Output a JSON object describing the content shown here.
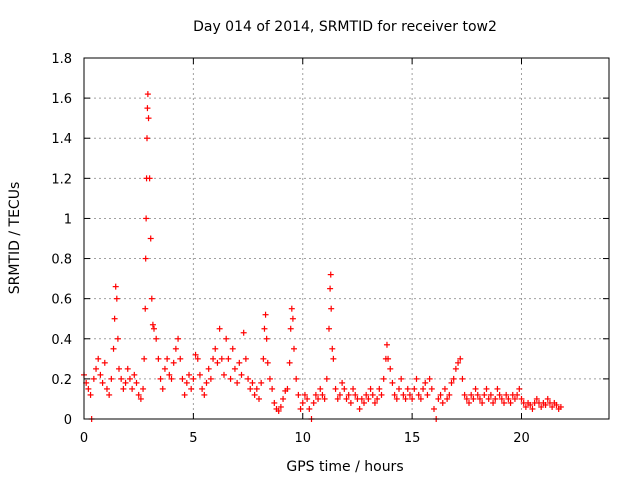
{
  "chart_data": {
    "type": "scatter",
    "title": "Day 014 of 2014, SRMTID for receiver tow2",
    "xlabel": "GPS time / hours",
    "ylabel": "SRMTID / TECUs",
    "xlim": [
      0,
      24
    ],
    "ylim": [
      0,
      1.8
    ],
    "xticks": [
      0,
      5,
      10,
      15,
      20
    ],
    "xtick_labels": [
      "0",
      "5",
      "10",
      "15",
      "20"
    ],
    "yticks": [
      0,
      0.2,
      0.4,
      0.6,
      0.8,
      1,
      1.2,
      1.4,
      1.6,
      1.8
    ],
    "ytick_labels": [
      "0",
      "0.2",
      "0.4",
      "0.6",
      "0.8",
      "1",
      "1.2",
      "1.4",
      "1.6",
      "1.8"
    ],
    "grid": true,
    "marker": "+",
    "color": "#ff0000",
    "series": [
      {
        "name": "SRMTID",
        "points": [
          [
            0.0,
            0.22
          ],
          [
            0.1,
            0.18
          ],
          [
            0.2,
            0.15
          ],
          [
            0.3,
            0.12
          ],
          [
            0.35,
            0.0
          ],
          [
            0.45,
            0.2
          ],
          [
            0.55,
            0.25
          ],
          [
            0.65,
            0.3
          ],
          [
            0.75,
            0.22
          ],
          [
            0.85,
            0.18
          ],
          [
            0.95,
            0.28
          ],
          [
            1.05,
            0.15
          ],
          [
            1.15,
            0.12
          ],
          [
            1.25,
            0.2
          ],
          [
            1.35,
            0.35
          ],
          [
            1.4,
            0.5
          ],
          [
            1.45,
            0.66
          ],
          [
            1.5,
            0.6
          ],
          [
            1.55,
            0.4
          ],
          [
            1.6,
            0.25
          ],
          [
            1.7,
            0.2
          ],
          [
            1.8,
            0.15
          ],
          [
            1.9,
            0.18
          ],
          [
            2.0,
            0.25
          ],
          [
            2.1,
            0.2
          ],
          [
            2.2,
            0.15
          ],
          [
            2.3,
            0.22
          ],
          [
            2.4,
            0.18
          ],
          [
            2.5,
            0.12
          ],
          [
            2.6,
            0.1
          ],
          [
            2.7,
            0.15
          ],
          [
            2.75,
            0.3
          ],
          [
            2.8,
            0.55
          ],
          [
            2.82,
            0.8
          ],
          [
            2.84,
            1.0
          ],
          [
            2.86,
            1.2
          ],
          [
            2.88,
            1.4
          ],
          [
            2.9,
            1.55
          ],
          [
            2.92,
            1.62
          ],
          [
            2.95,
            1.5
          ],
          [
            3.0,
            1.2
          ],
          [
            3.05,
            0.9
          ],
          [
            3.1,
            0.6
          ],
          [
            3.15,
            0.47
          ],
          [
            3.2,
            0.45
          ],
          [
            3.3,
            0.4
          ],
          [
            3.4,
            0.3
          ],
          [
            3.5,
            0.2
          ],
          [
            3.6,
            0.15
          ],
          [
            3.7,
            0.25
          ],
          [
            3.8,
            0.3
          ],
          [
            3.9,
            0.22
          ],
          [
            4.0,
            0.2
          ],
          [
            4.1,
            0.28
          ],
          [
            4.2,
            0.35
          ],
          [
            4.3,
            0.4
          ],
          [
            4.4,
            0.3
          ],
          [
            4.5,
            0.2
          ],
          [
            4.6,
            0.12
          ],
          [
            4.7,
            0.18
          ],
          [
            4.8,
            0.22
          ],
          [
            4.9,
            0.15
          ],
          [
            5.0,
            0.2
          ],
          [
            5.1,
            0.32
          ],
          [
            5.2,
            0.3
          ],
          [
            5.3,
            0.22
          ],
          [
            5.4,
            0.15
          ],
          [
            5.5,
            0.12
          ],
          [
            5.6,
            0.18
          ],
          [
            5.7,
            0.25
          ],
          [
            5.8,
            0.2
          ],
          [
            5.9,
            0.3
          ],
          [
            6.0,
            0.35
          ],
          [
            6.1,
            0.28
          ],
          [
            6.2,
            0.45
          ],
          [
            6.3,
            0.3
          ],
          [
            6.4,
            0.22
          ],
          [
            6.5,
            0.4
          ],
          [
            6.6,
            0.3
          ],
          [
            6.7,
            0.2
          ],
          [
            6.8,
            0.35
          ],
          [
            6.9,
            0.25
          ],
          [
            7.0,
            0.18
          ],
          [
            7.1,
            0.28
          ],
          [
            7.2,
            0.22
          ],
          [
            7.3,
            0.43
          ],
          [
            7.4,
            0.3
          ],
          [
            7.5,
            0.2
          ],
          [
            7.6,
            0.15
          ],
          [
            7.7,
            0.18
          ],
          [
            7.8,
            0.12
          ],
          [
            7.9,
            0.15
          ],
          [
            8.0,
            0.1
          ],
          [
            8.1,
            0.18
          ],
          [
            8.2,
            0.3
          ],
          [
            8.25,
            0.45
          ],
          [
            8.3,
            0.52
          ],
          [
            8.35,
            0.4
          ],
          [
            8.4,
            0.28
          ],
          [
            8.5,
            0.2
          ],
          [
            8.6,
            0.15
          ],
          [
            8.7,
            0.08
          ],
          [
            8.8,
            0.05
          ],
          [
            8.9,
            0.04
          ],
          [
            9.0,
            0.06
          ],
          [
            9.1,
            0.1
          ],
          [
            9.2,
            0.14
          ],
          [
            9.3,
            0.15
          ],
          [
            9.4,
            0.28
          ],
          [
            9.45,
            0.45
          ],
          [
            9.5,
            0.55
          ],
          [
            9.55,
            0.5
          ],
          [
            9.6,
            0.35
          ],
          [
            9.7,
            0.2
          ],
          [
            9.8,
            0.12
          ],
          [
            9.9,
            0.05
          ],
          [
            10.0,
            0.08
          ],
          [
            10.1,
            0.12
          ],
          [
            10.2,
            0.1
          ],
          [
            10.3,
            0.05
          ],
          [
            10.4,
            0.0
          ],
          [
            10.5,
            0.08
          ],
          [
            10.6,
            0.12
          ],
          [
            10.7,
            0.1
          ],
          [
            10.8,
            0.15
          ],
          [
            10.9,
            0.12
          ],
          [
            11.0,
            0.1
          ],
          [
            11.1,
            0.2
          ],
          [
            11.2,
            0.45
          ],
          [
            11.25,
            0.65
          ],
          [
            11.28,
            0.72
          ],
          [
            11.3,
            0.55
          ],
          [
            11.35,
            0.35
          ],
          [
            11.4,
            0.3
          ],
          [
            11.5,
            0.15
          ],
          [
            11.6,
            0.1
          ],
          [
            11.7,
            0.12
          ],
          [
            11.8,
            0.18
          ],
          [
            11.9,
            0.15
          ],
          [
            12.0,
            0.1
          ],
          [
            12.1,
            0.12
          ],
          [
            12.2,
            0.08
          ],
          [
            12.3,
            0.15
          ],
          [
            12.4,
            0.12
          ],
          [
            12.5,
            0.1
          ],
          [
            12.6,
            0.05
          ],
          [
            12.7,
            0.1
          ],
          [
            12.8,
            0.08
          ],
          [
            12.9,
            0.12
          ],
          [
            13.0,
            0.1
          ],
          [
            13.1,
            0.15
          ],
          [
            13.2,
            0.12
          ],
          [
            13.3,
            0.08
          ],
          [
            13.4,
            0.1
          ],
          [
            13.5,
            0.15
          ],
          [
            13.6,
            0.12
          ],
          [
            13.7,
            0.2
          ],
          [
            13.8,
            0.3
          ],
          [
            13.85,
            0.37
          ],
          [
            13.9,
            0.3
          ],
          [
            14.0,
            0.25
          ],
          [
            14.1,
            0.18
          ],
          [
            14.2,
            0.12
          ],
          [
            14.3,
            0.1
          ],
          [
            14.4,
            0.15
          ],
          [
            14.5,
            0.2
          ],
          [
            14.6,
            0.12
          ],
          [
            14.7,
            0.1
          ],
          [
            14.8,
            0.15
          ],
          [
            14.9,
            0.12
          ],
          [
            15.0,
            0.1
          ],
          [
            15.1,
            0.15
          ],
          [
            15.2,
            0.2
          ],
          [
            15.3,
            0.12
          ],
          [
            15.4,
            0.1
          ],
          [
            15.5,
            0.15
          ],
          [
            15.6,
            0.18
          ],
          [
            15.7,
            0.12
          ],
          [
            15.8,
            0.2
          ],
          [
            15.9,
            0.15
          ],
          [
            16.0,
            0.05
          ],
          [
            16.1,
            0.0
          ],
          [
            16.2,
            0.1
          ],
          [
            16.3,
            0.12
          ],
          [
            16.4,
            0.08
          ],
          [
            16.5,
            0.15
          ],
          [
            16.6,
            0.1
          ],
          [
            16.7,
            0.12
          ],
          [
            16.8,
            0.18
          ],
          [
            16.9,
            0.2
          ],
          [
            17.0,
            0.25
          ],
          [
            17.1,
            0.28
          ],
          [
            17.2,
            0.3
          ],
          [
            17.3,
            0.2
          ],
          [
            17.4,
            0.12
          ],
          [
            17.5,
            0.1
          ],
          [
            17.6,
            0.08
          ],
          [
            17.7,
            0.12
          ],
          [
            17.8,
            0.1
          ],
          [
            17.9,
            0.15
          ],
          [
            18.0,
            0.12
          ],
          [
            18.1,
            0.1
          ],
          [
            18.2,
            0.08
          ],
          [
            18.3,
            0.12
          ],
          [
            18.4,
            0.15
          ],
          [
            18.5,
            0.1
          ],
          [
            18.6,
            0.12
          ],
          [
            18.7,
            0.08
          ],
          [
            18.8,
            0.1
          ],
          [
            18.9,
            0.15
          ],
          [
            19.0,
            0.12
          ],
          [
            19.1,
            0.1
          ],
          [
            19.2,
            0.08
          ],
          [
            19.3,
            0.12
          ],
          [
            19.4,
            0.1
          ],
          [
            19.5,
            0.08
          ],
          [
            19.6,
            0.12
          ],
          [
            19.7,
            0.1
          ],
          [
            19.8,
            0.12
          ],
          [
            19.9,
            0.15
          ],
          [
            20.0,
            0.1
          ],
          [
            20.1,
            0.08
          ],
          [
            20.2,
            0.06
          ],
          [
            20.3,
            0.08
          ],
          [
            20.4,
            0.07
          ],
          [
            20.5,
            0.05
          ],
          [
            20.6,
            0.08
          ],
          [
            20.7,
            0.1
          ],
          [
            20.8,
            0.08
          ],
          [
            20.9,
            0.06
          ],
          [
            21.0,
            0.08
          ],
          [
            21.1,
            0.07
          ],
          [
            21.2,
            0.1
          ],
          [
            21.3,
            0.08
          ],
          [
            21.4,
            0.06
          ],
          [
            21.5,
            0.08
          ],
          [
            21.6,
            0.07
          ],
          [
            21.7,
            0.05
          ],
          [
            21.8,
            0.06
          ]
        ]
      }
    ]
  }
}
